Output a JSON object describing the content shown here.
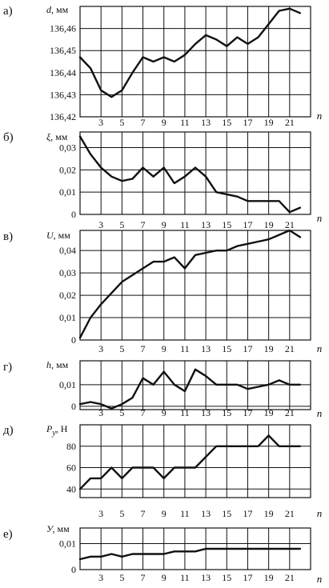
{
  "chart_data": [
    {
      "type": "line",
      "panel_label": "а)",
      "ylabel_symbol": "d,",
      "ylabel_unit": "мм",
      "xlabel": "n",
      "x_ticks": [
        3,
        5,
        7,
        9,
        11,
        13,
        15,
        17,
        19,
        21
      ],
      "y_ticks": [
        136.42,
        136.43,
        136.44,
        136.45,
        136.46
      ],
      "y_tick_labels": [
        "136,42",
        "136,43",
        "136,44",
        "136,45",
        "136,46"
      ],
      "xlim": [
        1,
        23
      ],
      "ylim": [
        136.42,
        136.47
      ],
      "x": [
        1,
        2,
        3,
        4,
        5,
        6,
        7,
        8,
        9,
        10,
        11,
        12,
        13,
        14,
        15,
        16,
        17,
        18,
        19,
        20,
        21,
        22
      ],
      "y": [
        136.447,
        136.442,
        136.432,
        136.429,
        136.432,
        136.44,
        136.447,
        136.445,
        136.447,
        136.445,
        136.448,
        136.453,
        136.457,
        136.455,
        136.452,
        136.456,
        136.453,
        136.456,
        136.462,
        136.468,
        136.469,
        136.467
      ]
    },
    {
      "type": "line",
      "panel_label": "б)",
      "ylabel_symbol": "ξ,",
      "ylabel_unit": "мм",
      "xlabel": "n",
      "x_ticks": [
        3,
        5,
        7,
        9,
        11,
        13,
        15,
        17,
        19,
        21
      ],
      "y_ticks": [
        0,
        0.01,
        0.02,
        0.03
      ],
      "y_tick_labels": [
        "0",
        "0,01",
        "0,02",
        "0,03"
      ],
      "xlim": [
        1,
        23
      ],
      "ylim": [
        0,
        0.037
      ],
      "x": [
        1,
        2,
        3,
        4,
        5,
        6,
        7,
        8,
        9,
        10,
        11,
        12,
        13,
        14,
        15,
        16,
        17,
        18,
        19,
        20,
        21,
        22
      ],
      "y": [
        0.035,
        0.027,
        0.021,
        0.017,
        0.015,
        0.016,
        0.021,
        0.017,
        0.021,
        0.014,
        0.017,
        0.021,
        0.017,
        0.01,
        0.009,
        0.008,
        0.006,
        0.006,
        0.006,
        0.006,
        0.001,
        0.003
      ]
    },
    {
      "type": "line",
      "panel_label": "в)",
      "ylabel_symbol": "U,",
      "ylabel_unit": "мм",
      "xlabel": "n",
      "x_ticks": [
        3,
        5,
        7,
        9,
        11,
        13,
        15,
        17,
        19,
        21
      ],
      "y_ticks": [
        0,
        0.01,
        0.02,
        0.03,
        0.04
      ],
      "y_tick_labels": [
        "0",
        "0,01",
        "0,02",
        "0,03",
        "0,04"
      ],
      "xlim": [
        1,
        23
      ],
      "ylim": [
        0,
        0.049
      ],
      "x": [
        1,
        2,
        3,
        4,
        5,
        6,
        7,
        8,
        9,
        10,
        11,
        12,
        13,
        14,
        15,
        16,
        17,
        18,
        19,
        20,
        21,
        22
      ],
      "y": [
        0.001,
        0.01,
        0.016,
        0.021,
        0.026,
        0.029,
        0.032,
        0.035,
        0.035,
        0.037,
        0.032,
        0.038,
        0.039,
        0.04,
        0.04,
        0.042,
        0.043,
        0.044,
        0.045,
        0.047,
        0.049,
        0.046
      ]
    },
    {
      "type": "line",
      "panel_label": "г)",
      "ylabel_symbol": "h,",
      "ylabel_unit": "мм",
      "xlabel": "n",
      "x_ticks": [
        3,
        5,
        7,
        9,
        11,
        13,
        15,
        17,
        19,
        21
      ],
      "y_ticks": [
        0,
        0.01
      ],
      "y_tick_labels": [
        "0",
        "0,01"
      ],
      "xlim": [
        1,
        23
      ],
      "ylim": [
        -0.0015,
        0.021
      ],
      "x": [
        1,
        2,
        3,
        4,
        5,
        6,
        7,
        8,
        9,
        10,
        11,
        12,
        13,
        14,
        15,
        16,
        17,
        18,
        19,
        20,
        21,
        22
      ],
      "y": [
        0.001,
        0.002,
        0.001,
        -0.001,
        0.001,
        0.004,
        0.013,
        0.01,
        0.016,
        0.01,
        0.007,
        0.017,
        0.014,
        0.01,
        0.01,
        0.01,
        0.008,
        0.009,
        0.01,
        0.012,
        0.01,
        0.01
      ]
    },
    {
      "type": "line",
      "panel_label": "д)",
      "ylabel_symbol": "P",
      "ylabel_subscript": "y",
      "ylabel_unit": ", Н",
      "xlabel": "n",
      "x_ticks": [
        3,
        5,
        7,
        9,
        11,
        13,
        15,
        17,
        19,
        21
      ],
      "y_ticks": [
        40,
        60,
        80
      ],
      "y_tick_labels": [
        "40",
        "60",
        "80"
      ],
      "xlim": [
        1,
        23
      ],
      "ylim": [
        32,
        100
      ],
      "x": [
        1,
        2,
        3,
        4,
        5,
        6,
        7,
        8,
        9,
        10,
        11,
        12,
        13,
        14,
        15,
        16,
        17,
        18,
        19,
        20,
        21,
        22
      ],
      "y": [
        40,
        50,
        50,
        60,
        50,
        60,
        60,
        60,
        50,
        60,
        60,
        60,
        70,
        80,
        80,
        80,
        80,
        80,
        90,
        80,
        80,
        80
      ]
    },
    {
      "type": "line",
      "panel_label": "е)",
      "ylabel_symbol": "У,",
      "ylabel_unit": "мм",
      "xlabel": "n",
      "x_ticks": [
        3,
        5,
        7,
        9,
        11,
        13,
        15,
        17,
        19,
        21
      ],
      "y_ticks": [
        0,
        0.01
      ],
      "y_tick_labels": [
        "0",
        "0,01"
      ],
      "xlim": [
        1,
        23
      ],
      "ylim": [
        0,
        0.016
      ],
      "x": [
        1,
        2,
        3,
        4,
        5,
        6,
        7,
        8,
        9,
        10,
        11,
        12,
        13,
        14,
        15,
        16,
        17,
        18,
        19,
        20,
        21,
        22
      ],
      "y": [
        0.004,
        0.005,
        0.005,
        0.006,
        0.005,
        0.006,
        0.006,
        0.006,
        0.006,
        0.007,
        0.007,
        0.007,
        0.008,
        0.008,
        0.008,
        0.008,
        0.008,
        0.008,
        0.008,
        0.008,
        0.008,
        0.008
      ]
    }
  ]
}
